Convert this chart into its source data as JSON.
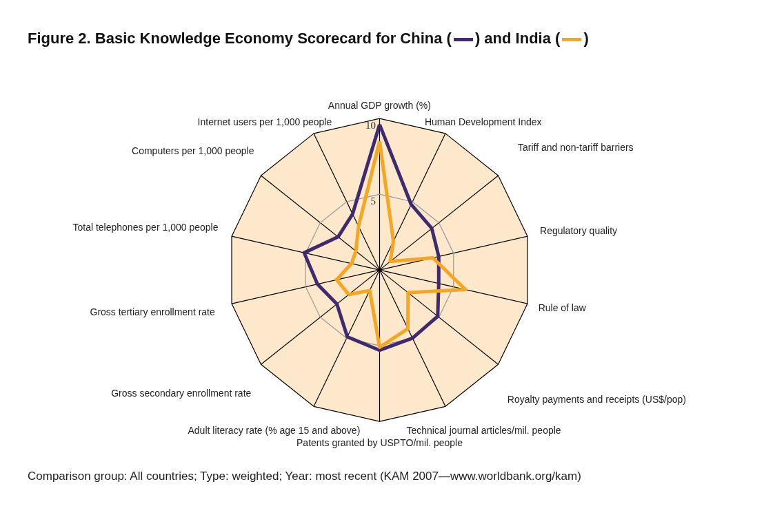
{
  "chart_data": {
    "type": "radar",
    "title": "Figure 2.  Basic Knowledge Economy Scorecard for China ( ) and India ( )",
    "categories": [
      "Annual GDP growth (%)",
      "Human Development Index",
      "Tariff and non-tariff barriers",
      "Regulatory quality",
      "Rule of law",
      "Royalty payments and receipts (US$/pop)",
      "Technical journal articles/mil. people",
      "Patents granted by USPTO/mil. people",
      "Adult literacy rate (% age 15 and above)",
      "Gross secondary enrollment rate",
      "Gross tertiary enrollment rate",
      "Total telephones per 1,000 people",
      "Computers per 1,000 people",
      "Internet users per 1,000 people"
    ],
    "series": [
      {
        "color": "#3f2a6e",
        "values": [
          9.6,
          4.8,
          4.4,
          4.0,
          4.0,
          4.9,
          5.0,
          5.3,
          4.9,
          3.6,
          4.2,
          5.1,
          3.5,
          4.1
        ]
      },
      {
        "color": "#f5a623",
        "values": [
          8.5,
          2.1,
          0.9,
          3.6,
          5.8,
          2.4,
          4.3,
          5.1,
          1.5,
          2.6,
          2.9,
          1.9,
          2.0,
          3.2
        ]
      }
    ],
    "ylim": [
      0,
      10
    ],
    "yticks": [
      5,
      10
    ],
    "grid": true,
    "marker": "none",
    "line_style": "solid",
    "annotations": [
      "Comparison group: All countries; Type: weighted; Year: most recent (KAM 2007—www.worldbank.org/kam)"
    ]
  }
}
